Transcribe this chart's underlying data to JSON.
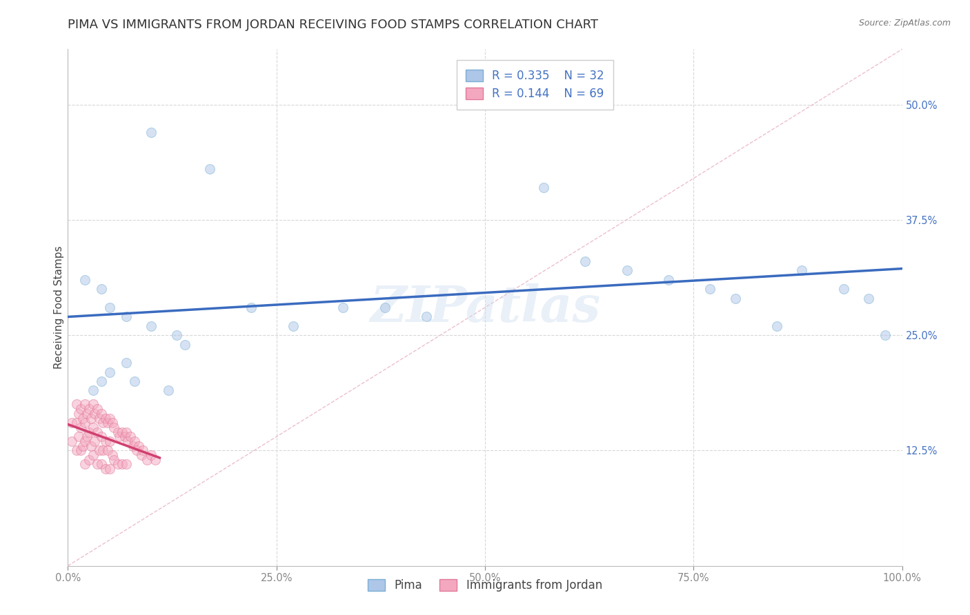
{
  "title": "PIMA VS IMMIGRANTS FROM JORDAN RECEIVING FOOD STAMPS CORRELATION CHART",
  "source_text": "Source: ZipAtlas.com",
  "ylabel": "Receiving Food Stamps",
  "xlabel": "",
  "background_color": "#ffffff",
  "watermark": "ZIPatlas",
  "pima_color": "#aec6e8",
  "pima_edge_color": "#7aafd4",
  "jordan_color": "#f4a8c0",
  "jordan_edge_color": "#e07898",
  "pima_R": 0.335,
  "pima_N": 32,
  "jordan_R": 0.144,
  "jordan_N": 69,
  "pima_line_color": "#3a6bbf",
  "jordan_line_color": "#d04070",
  "diagonal_color": "#e0b0b8",
  "grid_color": "#d8d8d8",
  "pima_x": [
    0.1,
    0.17,
    0.02,
    0.04,
    0.05,
    0.07,
    0.1,
    0.13,
    0.14,
    0.07,
    0.05,
    0.04,
    0.03,
    0.52,
    0.57,
    0.62,
    0.67,
    0.72,
    0.77,
    0.8,
    0.85,
    0.88,
    0.93,
    0.96,
    0.98,
    0.38,
    0.43,
    0.33,
    0.27,
    0.22,
    0.08,
    0.12
  ],
  "pima_y": [
    0.47,
    0.43,
    0.31,
    0.3,
    0.28,
    0.27,
    0.26,
    0.25,
    0.24,
    0.22,
    0.21,
    0.2,
    0.19,
    0.5,
    0.41,
    0.33,
    0.32,
    0.31,
    0.3,
    0.29,
    0.26,
    0.32,
    0.3,
    0.29,
    0.25,
    0.28,
    0.27,
    0.28,
    0.26,
    0.28,
    0.2,
    0.19
  ],
  "jordan_x": [
    0.005,
    0.005,
    0.01,
    0.01,
    0.01,
    0.013,
    0.013,
    0.015,
    0.015,
    0.015,
    0.018,
    0.018,
    0.02,
    0.02,
    0.02,
    0.02,
    0.023,
    0.023,
    0.025,
    0.025,
    0.025,
    0.028,
    0.028,
    0.03,
    0.03,
    0.03,
    0.032,
    0.032,
    0.035,
    0.035,
    0.035,
    0.038,
    0.038,
    0.04,
    0.04,
    0.04,
    0.042,
    0.042,
    0.045,
    0.045,
    0.045,
    0.048,
    0.048,
    0.05,
    0.05,
    0.05,
    0.053,
    0.053,
    0.055,
    0.055,
    0.06,
    0.06,
    0.062,
    0.065,
    0.065,
    0.068,
    0.07,
    0.07,
    0.072,
    0.075,
    0.078,
    0.08,
    0.082,
    0.085,
    0.088,
    0.09,
    0.095,
    0.1,
    0.105
  ],
  "jordan_y": [
    0.155,
    0.135,
    0.175,
    0.155,
    0.125,
    0.165,
    0.14,
    0.17,
    0.15,
    0.125,
    0.16,
    0.13,
    0.175,
    0.155,
    0.135,
    0.11,
    0.165,
    0.14,
    0.17,
    0.145,
    0.115,
    0.16,
    0.13,
    0.175,
    0.15,
    0.12,
    0.165,
    0.135,
    0.17,
    0.145,
    0.11,
    0.16,
    0.125,
    0.165,
    0.14,
    0.11,
    0.155,
    0.125,
    0.16,
    0.135,
    0.105,
    0.155,
    0.125,
    0.16,
    0.135,
    0.105,
    0.155,
    0.12,
    0.15,
    0.115,
    0.145,
    0.11,
    0.14,
    0.145,
    0.11,
    0.14,
    0.145,
    0.11,
    0.135,
    0.14,
    0.13,
    0.135,
    0.125,
    0.13,
    0.12,
    0.125,
    0.115,
    0.12,
    0.115
  ],
  "xlim": [
    0.0,
    1.0
  ],
  "ylim": [
    0.0,
    0.56
  ],
  "xticks": [
    0.0,
    0.25,
    0.5,
    0.75,
    1.0
  ],
  "xtick_labels": [
    "0.0%",
    "25.0%",
    "50.0%",
    "75.0%",
    "100.0%"
  ],
  "ytick_right_vals": [
    0.125,
    0.25,
    0.375,
    0.5
  ],
  "ytick_right_labels": [
    "12.5%",
    "25.0%",
    "37.5%",
    "50.0%"
  ],
  "legend_pima_label": "Pima",
  "legend_jordan_label": "Immigrants from Jordan",
  "title_fontsize": 13,
  "axis_label_fontsize": 11,
  "tick_fontsize": 10.5,
  "legend_fontsize": 12,
  "marker_size": 100,
  "marker_alpha": 0.5,
  "line_width": 2.5
}
